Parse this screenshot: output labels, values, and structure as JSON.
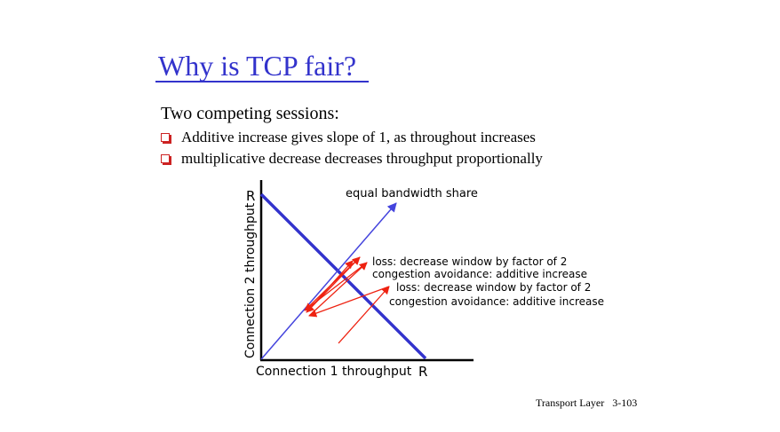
{
  "slide": {
    "title": "Why is TCP fair?",
    "subtitle": "Two competing sessions:",
    "bullets": [
      "Additive increase gives slope of 1, as throughout increases",
      "multiplicative decrease decreases throughput proportionally"
    ],
    "bullet_icon": "checkbox-square-icon",
    "footer": "Transport Layer   3-103"
  },
  "diagram": {
    "y_axis_label": "Connection 2 throughput",
    "x_axis_label": "Connection 1 throughput",
    "y_max_label": "R",
    "x_max_label": "R",
    "equal_share_label": "equal bandwidth share",
    "annotations": [
      "loss: decrease window by factor of 2",
      "congestion avoidance: additive increase",
      "loss: decrease window by factor of 2",
      "congestion avoidance: additive increase"
    ],
    "colors": {
      "title": "#3333cc",
      "capacity_line": "#3333cc",
      "equal_share_line": "#4444dd",
      "trajectory": "#ee2211",
      "axes": "#000000"
    }
  }
}
